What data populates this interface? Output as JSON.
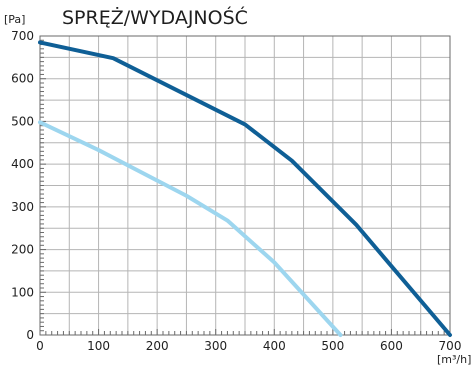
{
  "chart_data": {
    "type": "line",
    "title": "SPRĘŻ/WYDAJNOŚĆ",
    "ylabel": "[Pa]",
    "xlabel": "[m³/h]",
    "xlim": [
      0,
      700
    ],
    "ylim": [
      0,
      700
    ],
    "x_ticks": [
      0,
      100,
      200,
      300,
      400,
      500,
      600,
      700
    ],
    "y_ticks": [
      0,
      100,
      200,
      300,
      400,
      500,
      600,
      700
    ],
    "x_tick_labels": [
      "0",
      "100",
      "200",
      "300",
      "400",
      "500",
      "600",
      "700"
    ],
    "y_tick_labels": [
      "0",
      "100",
      "200",
      "300",
      "400",
      "500",
      "600",
      "700"
    ],
    "grid": true,
    "legend": "none",
    "series": [
      {
        "color": "#0f5f96",
        "points": [
          [
            0,
            685
          ],
          [
            125,
            648
          ],
          [
            350,
            493
          ],
          [
            430,
            408
          ],
          [
            540,
            258
          ],
          [
            700,
            0
          ]
        ]
      },
      {
        "color": "#9dd6ef",
        "points": [
          [
            0,
            498
          ],
          [
            100,
            433
          ],
          [
            250,
            326
          ],
          [
            320,
            268
          ],
          [
            400,
            170
          ],
          [
            513,
            0
          ]
        ]
      }
    ],
    "colors": {
      "grid": "#b5b5b5",
      "axis": "#6a6a6a"
    }
  }
}
